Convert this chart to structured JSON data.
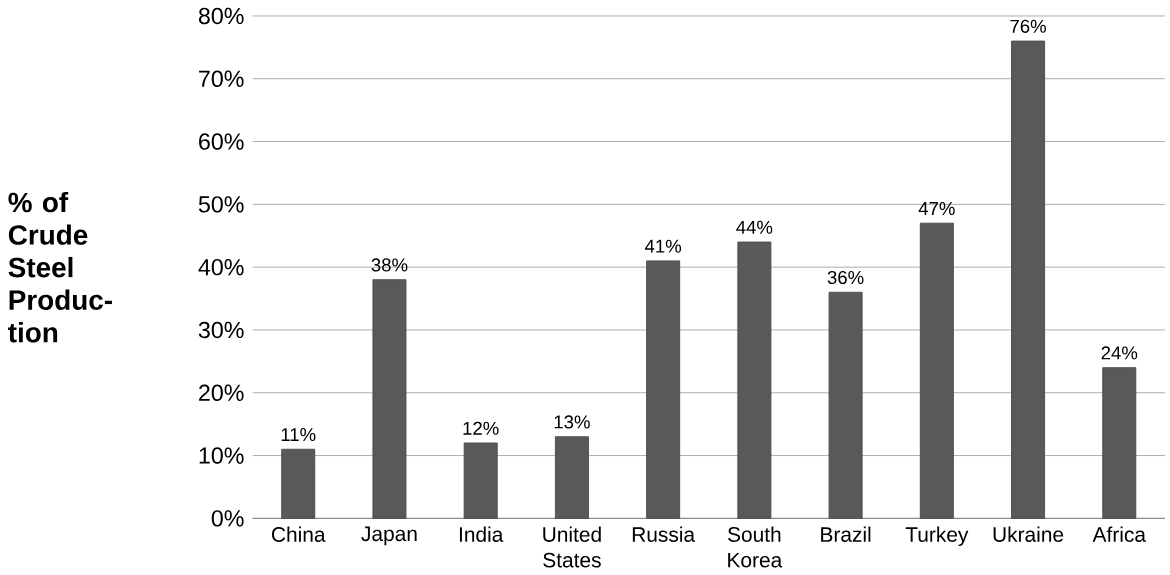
{
  "chart_data": {
    "type": "bar",
    "ylabel": "% of Crude Steel Produc-tion",
    "categories": [
      "China",
      "Japan",
      "India",
      "United States",
      "Russia",
      "South Korea",
      "Brazil",
      "Turkey",
      "Ukraine",
      "Africa"
    ],
    "values": [
      11,
      38,
      12,
      13,
      41,
      44,
      36,
      47,
      76,
      24
    ],
    "value_labels": [
      "11%",
      "38%",
      "12%",
      "13%",
      "41%",
      "44%",
      "36%",
      "47%",
      "76%",
      "24%"
    ],
    "color": "#595959",
    "ylim": [
      0,
      80
    ],
    "yticks": [
      {
        "value": 0,
        "label": "0%"
      },
      {
        "value": 10,
        "label": "10%"
      },
      {
        "value": 20,
        "label": "20%"
      },
      {
        "value": 30,
        "label": "30%"
      },
      {
        "value": 40,
        "label": "40%"
      },
      {
        "value": 50,
        "label": "50%"
      },
      {
        "value": 60,
        "label": "60%"
      },
      {
        "value": 70,
        "label": "70%"
      },
      {
        "value": 80,
        "label": "80%"
      }
    ],
    "grid": "y"
  }
}
